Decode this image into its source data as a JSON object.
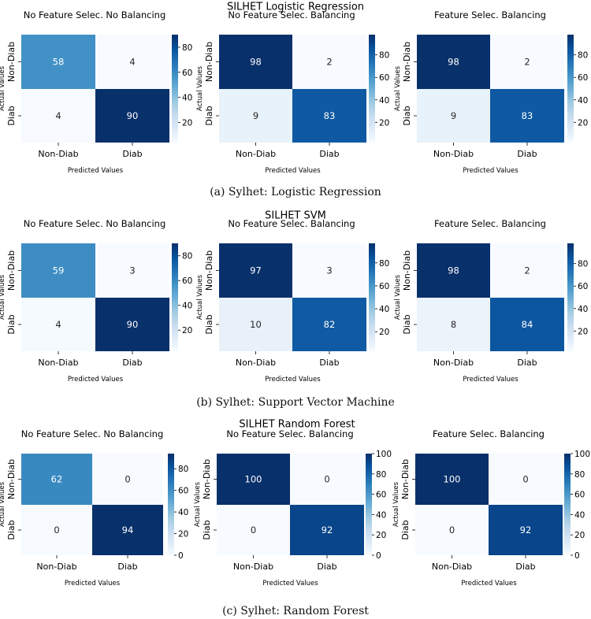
{
  "chart_data": [
    {
      "type": "heatmap",
      "section_title": "SILHET Logistic Regression",
      "caption": "(a) Sylhet: Logistic Regression",
      "panels": [
        {
          "title": "No Feature Selec. No Balancing",
          "matrix": [
            [
              58,
              4
            ],
            [
              4,
              90
            ]
          ],
          "colorbar_range": [
            4,
            90
          ],
          "colorbar_ticks": [
            20,
            40,
            60,
            80
          ]
        },
        {
          "title": "No Feature Selec. Balancing",
          "matrix": [
            [
              98,
              2
            ],
            [
              9,
              83
            ]
          ],
          "colorbar_range": [
            2,
            98
          ],
          "colorbar_ticks": [
            20,
            40,
            60,
            80
          ]
        },
        {
          "title": "Feature Selec. Balancing",
          "matrix": [
            [
              98,
              2
            ],
            [
              9,
              83
            ]
          ],
          "colorbar_range": [
            2,
            98
          ],
          "colorbar_ticks": [
            20,
            40,
            60,
            80
          ]
        }
      ]
    },
    {
      "type": "heatmap",
      "section_title": "SILHET SVM",
      "caption": "(b) Sylhet: Support Vector Machine",
      "panels": [
        {
          "title": "No Feature Selec. No Balancing",
          "matrix": [
            [
              59,
              3
            ],
            [
              4,
              90
            ]
          ],
          "colorbar_range": [
            3,
            90
          ],
          "colorbar_ticks": [
            20,
            40,
            60,
            80
          ]
        },
        {
          "title": "No Feature Selec. Balancing",
          "matrix": [
            [
              97,
              3
            ],
            [
              10,
              82
            ]
          ],
          "colorbar_range": [
            3,
            97
          ],
          "colorbar_ticks": [
            20,
            40,
            60,
            80
          ]
        },
        {
          "title": "Feature Selec. Balancing",
          "matrix": [
            [
              98,
              2
            ],
            [
              8,
              84
            ]
          ],
          "colorbar_range": [
            2,
            98
          ],
          "colorbar_ticks": [
            20,
            40,
            60,
            80
          ]
        }
      ]
    },
    {
      "type": "heatmap",
      "section_title": "SILHET Random Forest",
      "caption": "(c) Sylhet: Random Forest",
      "panels": [
        {
          "title": "No Feature Selec. No Balancing",
          "matrix": [
            [
              62,
              0
            ],
            [
              0,
              94
            ]
          ],
          "colorbar_range": [
            0,
            94
          ],
          "colorbar_ticks": [
            0,
            20,
            40,
            60,
            80
          ]
        },
        {
          "title": "No Feature Selec. Balancing",
          "matrix": [
            [
              100,
              0
            ],
            [
              0,
              92
            ]
          ],
          "colorbar_range": [
            0,
            100
          ],
          "colorbar_ticks": [
            0,
            20,
            40,
            60,
            80,
            100
          ]
        },
        {
          "title": "Feature Selec. Balancing",
          "matrix": [
            [
              100,
              0
            ],
            [
              0,
              92
            ]
          ],
          "colorbar_range": [
            0,
            100
          ],
          "colorbar_ticks": [
            0,
            20,
            40,
            60,
            80,
            100
          ]
        }
      ]
    }
  ],
  "axes": {
    "xlabel": "Predicted Values",
    "ylabel": "Actual Values",
    "x_categories": [
      "Non-Diab",
      "Diab"
    ],
    "y_categories": [
      "Non-Diab",
      "Diab"
    ]
  },
  "colormap": "Blues"
}
